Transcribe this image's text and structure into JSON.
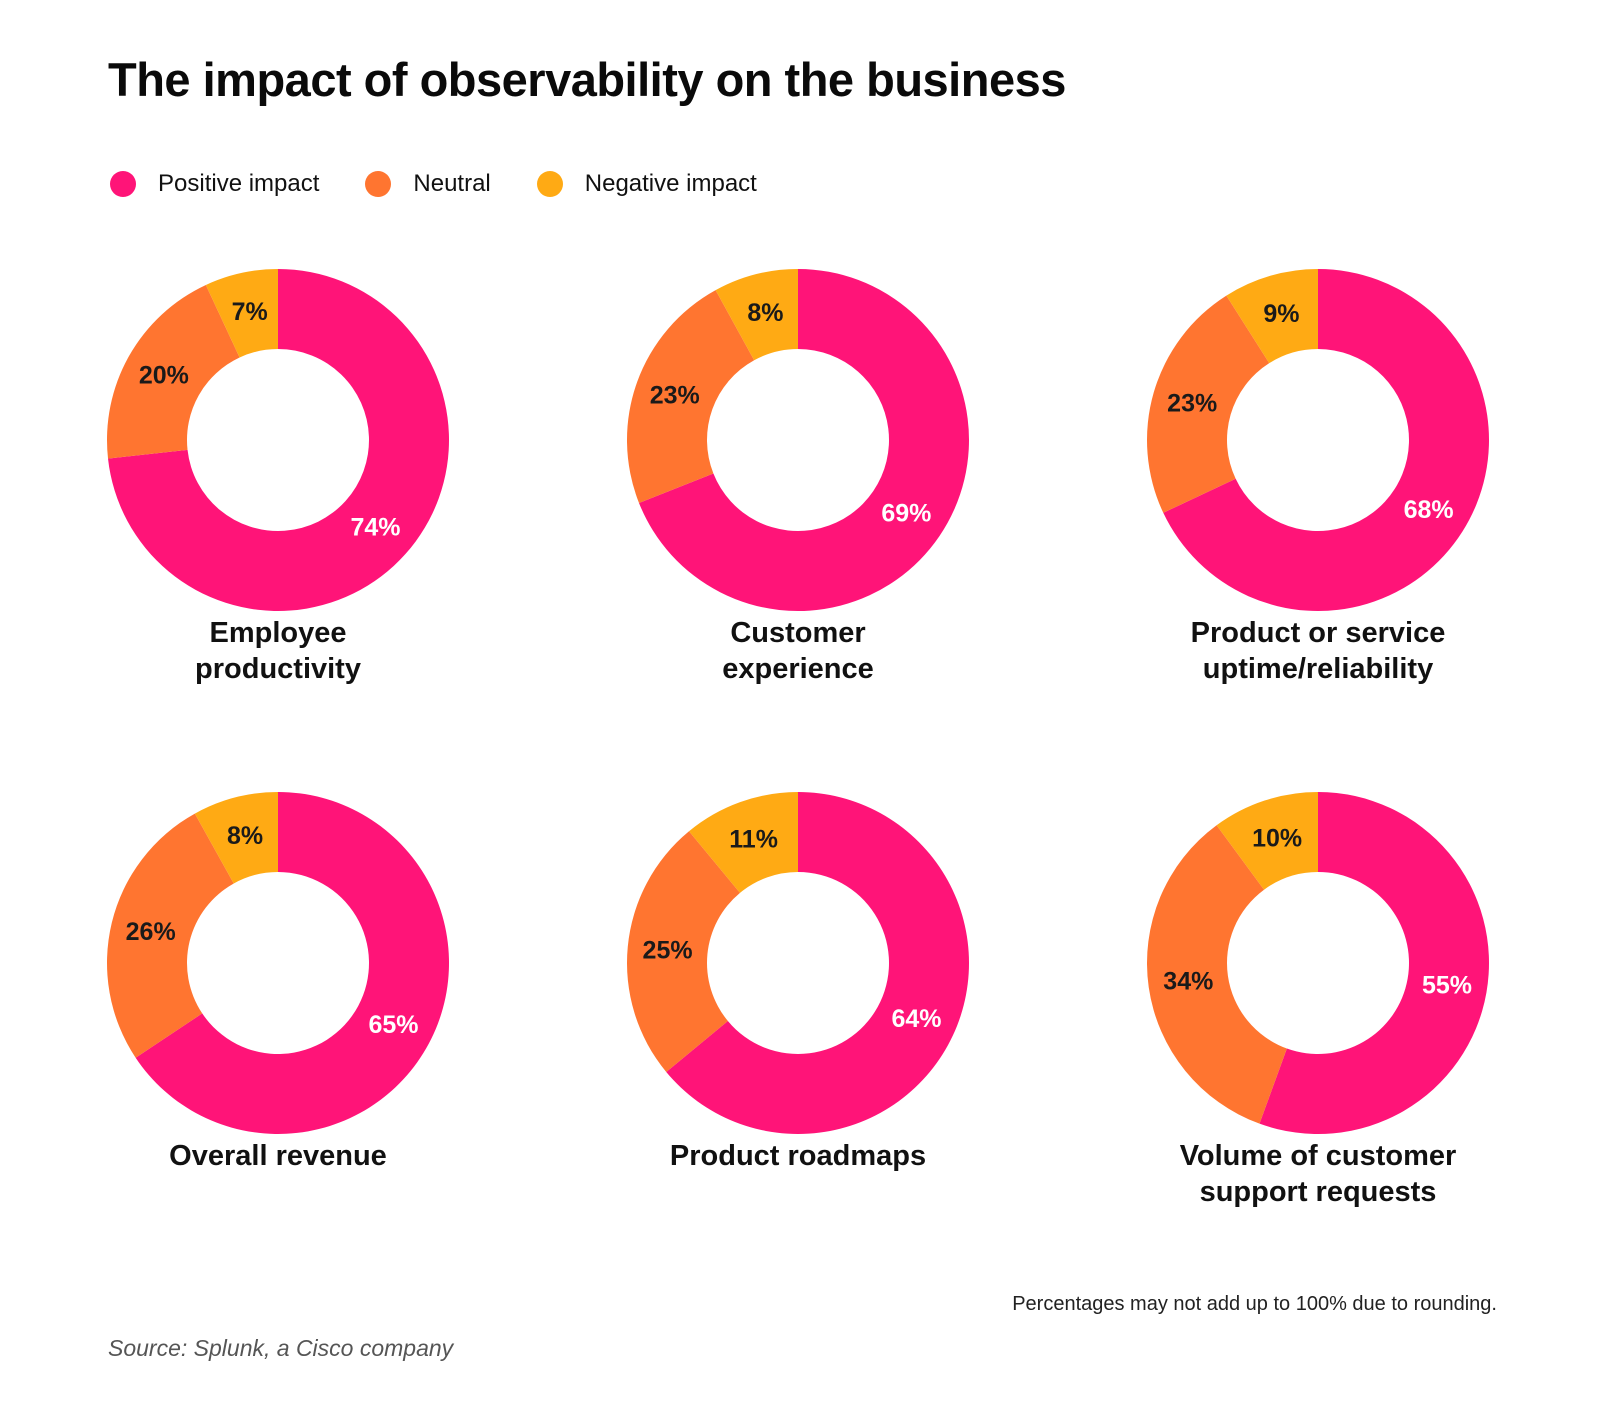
{
  "title": "The impact of observability on the business",
  "legend": [
    {
      "label": "Positive impact",
      "color": "#FF1478"
    },
    {
      "label": "Neutral",
      "color": "#FF7530"
    },
    {
      "label": "Negative impact",
      "color": "#FFAA14"
    }
  ],
  "chart_data": [
    {
      "type": "pie",
      "label_lines": [
        "Employee",
        "productivity"
      ],
      "slices": [
        {
          "name": "Positive impact",
          "value": 74
        },
        {
          "name": "Neutral",
          "value": 20
        },
        {
          "name": "Negative impact",
          "value": 7
        }
      ],
      "data_labels": [
        "74%",
        "20%",
        "7%"
      ]
    },
    {
      "type": "pie",
      "label_lines": [
        "Customer",
        "experience"
      ],
      "slices": [
        {
          "name": "Positive impact",
          "value": 69
        },
        {
          "name": "Neutral",
          "value": 23
        },
        {
          "name": "Negative impact",
          "value": 8
        }
      ],
      "data_labels": [
        "69%",
        "23%",
        "8%"
      ]
    },
    {
      "type": "pie",
      "label_lines": [
        "Product or service",
        "uptime/reliability"
      ],
      "slices": [
        {
          "name": "Positive impact",
          "value": 68
        },
        {
          "name": "Neutral",
          "value": 23
        },
        {
          "name": "Negative impact",
          "value": 9
        }
      ],
      "data_labels": [
        "68%",
        "23%",
        "9%"
      ]
    },
    {
      "type": "pie",
      "label_lines": [
        "Overall revenue"
      ],
      "slices": [
        {
          "name": "Positive impact",
          "value": 65
        },
        {
          "name": "Neutral",
          "value": 26
        },
        {
          "name": "Negative impact",
          "value": 8
        }
      ],
      "data_labels": [
        "65%",
        "26%",
        "8%"
      ]
    },
    {
      "type": "pie",
      "label_lines": [
        "Product roadmaps"
      ],
      "slices": [
        {
          "name": "Positive impact",
          "value": 64
        },
        {
          "name": "Neutral",
          "value": 25
        },
        {
          "name": "Negative impact",
          "value": 11
        }
      ],
      "data_labels": [
        "64%",
        "25%",
        "11%"
      ]
    },
    {
      "type": "pie",
      "label_lines": [
        "Volume of customer",
        "support requests"
      ],
      "slices": [
        {
          "name": "Positive impact",
          "value": 55
        },
        {
          "name": "Neutral",
          "value": 34
        },
        {
          "name": "Negative impact",
          "value": 10
        }
      ],
      "data_labels": [
        "55%",
        "34%",
        "10%"
      ]
    }
  ],
  "footnote": "Percentages may not add up to 100% due to rounding.",
  "source": "Source: Splunk, a Cisco company"
}
